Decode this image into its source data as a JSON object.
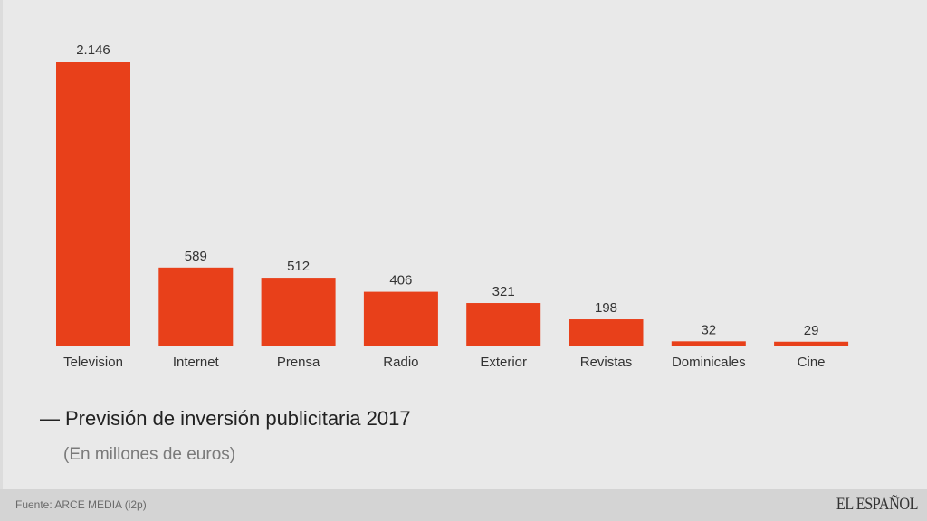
{
  "chart_data": {
    "type": "bar",
    "title": "Previsión de inversión publicitaria 2017",
    "subtitle": "(En millones de euros)",
    "xlabel": "",
    "ylabel": "",
    "categories": [
      "Television",
      "Internet",
      "Prensa",
      "Radio",
      "Exterior",
      "Revistas",
      "Dominicales",
      "Cine"
    ],
    "values": [
      2146,
      589,
      512,
      406,
      321,
      198,
      32,
      29
    ],
    "value_labels": [
      "2.146",
      "589",
      "512",
      "406",
      "321",
      "198",
      "32",
      "29"
    ],
    "ylim": [
      0,
      2146
    ],
    "grid": false,
    "legend": "none",
    "bar_color": "#e8401a"
  },
  "header": {
    "dash": "—",
    "title": "Previsión de inversión publicitaria 2017",
    "subtitle": "(En millones de euros)"
  },
  "footer": {
    "source": "Fuente: ARCE MEDIA (i2p)",
    "logo": "EL ESPAÑOL"
  }
}
